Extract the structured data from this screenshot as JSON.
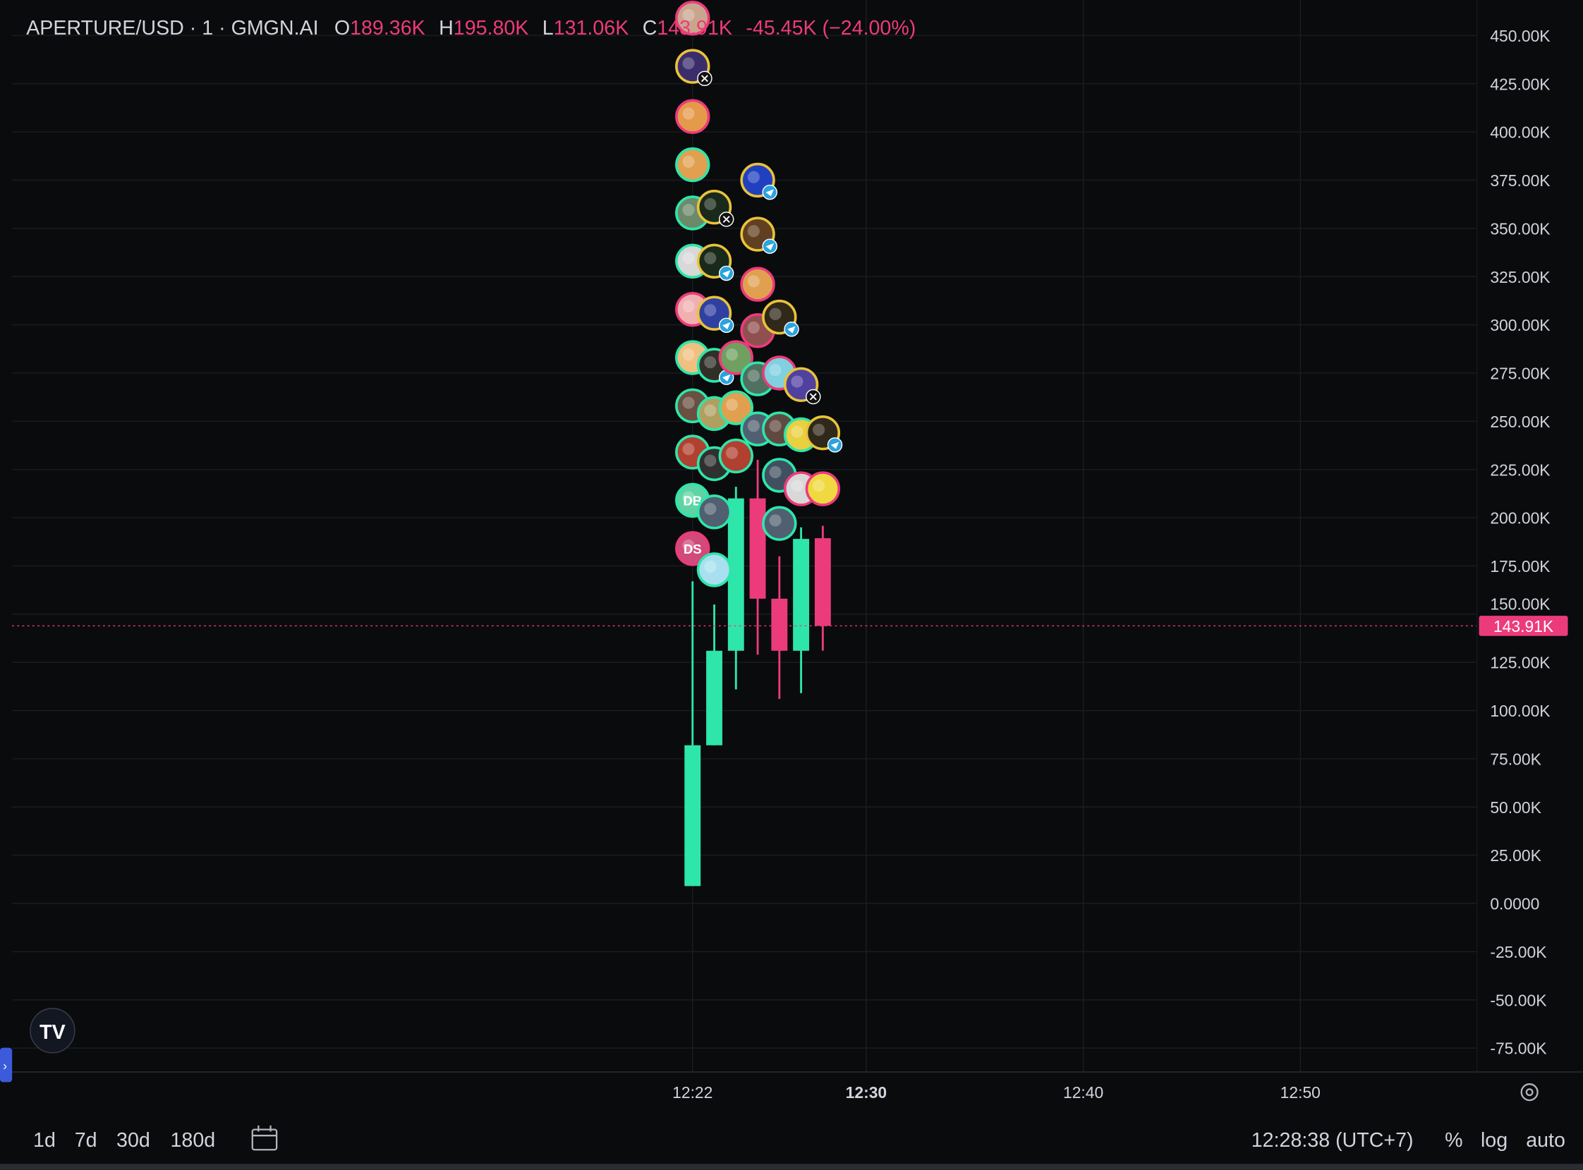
{
  "header": {
    "symbol": "APERTURE/USD · 1 · GMGN.AI",
    "o_label": "O",
    "o_value": "189.36K",
    "h_label": "H",
    "h_value": "195.80K",
    "l_label": "L",
    "l_value": "131.06K",
    "c_label": "C",
    "c_value": "143.91K",
    "change": "-45.45K (−24.00%)"
  },
  "colors": {
    "up": "#2ee6aa",
    "down": "#ec3b7a",
    "background": "#0a0b0d",
    "grid": "#1b1d22",
    "text": "#d1d4dc"
  },
  "chart_data": {
    "type": "candlestick",
    "x_ticks": [
      "12:22",
      "12:30",
      "12:40",
      "12:50"
    ],
    "y_ticks": [
      "450.00K",
      "425.00K",
      "400.00K",
      "375.00K",
      "350.00K",
      "325.00K",
      "300.00K",
      "275.00K",
      "250.00K",
      "225.00K",
      "200.00K",
      "175.00K",
      "150.00K",
      "125.00K",
      "100.00K",
      "75.00K",
      "50.00K",
      "25.00K",
      "0.0000",
      "-25.00K",
      "-50.00K",
      "-75.00K"
    ],
    "ylim_k": [
      -85,
      470
    ],
    "xlim_time": [
      "12:00",
      "12:58"
    ],
    "grid": true,
    "last_price_label": "143.91K",
    "last_price_k": 143.91,
    "candles": [
      {
        "time": "12:22",
        "open": 9,
        "high": 167,
        "low": 9,
        "close": 82
      },
      {
        "time": "12:23",
        "open": 82,
        "high": 155,
        "low": 82,
        "close": 131
      },
      {
        "time": "12:24",
        "open": 131,
        "high": 216,
        "low": 111,
        "close": 210
      },
      {
        "time": "12:25",
        "open": 210,
        "high": 230,
        "low": 129,
        "close": 158
      },
      {
        "time": "12:26",
        "open": 158,
        "high": 180,
        "low": 106,
        "close": 131
      },
      {
        "time": "12:27",
        "open": 131,
        "high": 195,
        "low": 109,
        "close": 189
      },
      {
        "time": "12:28",
        "open": 189.36,
        "high": 195.8,
        "low": 131.06,
        "close": 143.91
      }
    ],
    "trader_markers": [
      {
        "time": "12:22",
        "price": 459,
        "ring": "#ec3b7a",
        "fill": "#c9a58e"
      },
      {
        "time": "12:22",
        "price": 434,
        "ring": "#e8c33a",
        "fill": "#3b2d6b",
        "badge": "x"
      },
      {
        "time": "12:22",
        "price": 408,
        "ring": "#ec3b7a",
        "fill": "#e49a4a"
      },
      {
        "time": "12:22",
        "price": 383,
        "ring": "#2ee6aa",
        "fill": "#e0a050"
      },
      {
        "time": "12:22",
        "price": 358,
        "ring": "#2ee6aa",
        "fill": "#6b8a6a"
      },
      {
        "time": "12:22",
        "price": 333,
        "ring": "#2ee6aa",
        "fill": "#d8d8d8"
      },
      {
        "time": "12:22",
        "price": 308,
        "ring": "#ec3b7a",
        "fill": "#f0b0b0"
      },
      {
        "time": "12:22",
        "price": 283,
        "ring": "#2ee6aa",
        "fill": "#f0c080"
      },
      {
        "time": "12:22",
        "price": 258,
        "ring": "#2ee6aa",
        "fill": "#6a5040"
      },
      {
        "time": "12:22",
        "price": 234,
        "ring": "#2ee6aa",
        "fill": "#b04030"
      },
      {
        "time": "12:22",
        "price": 209,
        "ring": "#2ee6aa",
        "fill": "#5fd3a4",
        "initials": "DB"
      },
      {
        "time": "12:22",
        "price": 184,
        "ring": "#ec3b7a",
        "fill": "#d04a7a",
        "initials": "DS"
      },
      {
        "time": "12:23",
        "price": 361,
        "ring": "#e8c33a",
        "fill": "#1a2a1a",
        "badge": "x"
      },
      {
        "time": "12:23",
        "price": 333,
        "ring": "#e8c33a",
        "fill": "#1a2a1a",
        "badge": "tg"
      },
      {
        "time": "12:23",
        "price": 306,
        "ring": "#e8c33a",
        "fill": "#3040a0",
        "badge": "tg"
      },
      {
        "time": "12:23",
        "price": 279,
        "ring": "#2ee6aa",
        "fill": "#303028",
        "badge": "tg"
      },
      {
        "time": "12:23",
        "price": 254,
        "ring": "#2ee6aa",
        "fill": "#b0a060"
      },
      {
        "time": "12:23",
        "price": 228,
        "ring": "#2ee6aa",
        "fill": "#303030"
      },
      {
        "time": "12:23",
        "price": 203,
        "ring": "#2ee6aa",
        "fill": "#506070"
      },
      {
        "time": "12:23",
        "price": 173,
        "ring": "#2ee6aa",
        "fill": "#a8e0f0"
      },
      {
        "time": "12:24",
        "price": 283,
        "ring": "#ec3b7a",
        "fill": "#70a060"
      },
      {
        "time": "12:24",
        "price": 257,
        "ring": "#2ee6aa",
        "fill": "#e0a050"
      },
      {
        "time": "12:24",
        "price": 232,
        "ring": "#2ee6aa",
        "fill": "#b04030"
      },
      {
        "time": "12:25",
        "price": 375,
        "ring": "#e8c33a",
        "fill": "#2040c0",
        "badge": "tg"
      },
      {
        "time": "12:25",
        "price": 347,
        "ring": "#e8c33a",
        "fill": "#604020",
        "badge": "tg"
      },
      {
        "time": "12:25",
        "price": 321,
        "ring": "#ec3b7a",
        "fill": "#e0a050"
      },
      {
        "time": "12:25",
        "price": 297,
        "ring": "#ec3b7a",
        "fill": "#905050"
      },
      {
        "time": "12:25",
        "price": 272,
        "ring": "#2ee6aa",
        "fill": "#507060"
      },
      {
        "time": "12:25",
        "price": 246,
        "ring": "#2ee6aa",
        "fill": "#506070"
      },
      {
        "time": "12:26",
        "price": 304,
        "ring": "#e8c33a",
        "fill": "#302818",
        "badge": "tg"
      },
      {
        "time": "12:26",
        "price": 275,
        "ring": "#ec3b7a",
        "fill": "#80d0e0"
      },
      {
        "time": "12:26",
        "price": 246,
        "ring": "#2ee6aa",
        "fill": "#604a40"
      },
      {
        "time": "12:26",
        "price": 222,
        "ring": "#2ee6aa",
        "fill": "#405060"
      },
      {
        "time": "12:26",
        "price": 197,
        "ring": "#2ee6aa",
        "fill": "#506070"
      },
      {
        "time": "12:27",
        "price": 269,
        "ring": "#e8c33a",
        "fill": "#5040a0",
        "badge": "x"
      },
      {
        "time": "12:27",
        "price": 243,
        "ring": "#2ee6aa",
        "fill": "#e8d040"
      },
      {
        "time": "12:27",
        "price": 215,
        "ring": "#ec3b7a",
        "fill": "#d8d8d8"
      },
      {
        "time": "12:28",
        "price": 244,
        "ring": "#e8c33a",
        "fill": "#302818",
        "badge": "tg"
      },
      {
        "time": "12:28",
        "price": 215,
        "ring": "#ec3b7a",
        "fill": "#f0d840"
      }
    ]
  },
  "toolbar": {
    "ranges": [
      "1d",
      "7d",
      "30d",
      "180d"
    ],
    "clock": "12:28:38 (UTC+7)",
    "percent": "%",
    "log": "log",
    "auto": "auto"
  }
}
